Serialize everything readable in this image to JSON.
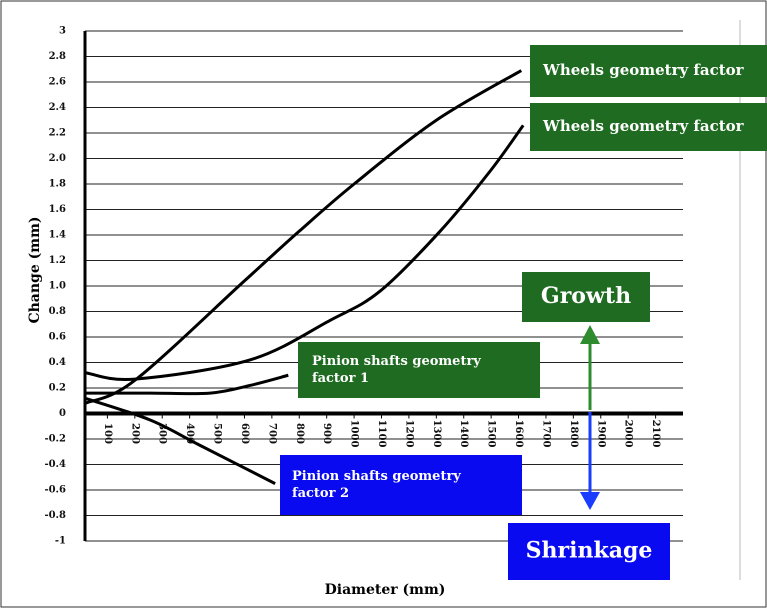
{
  "chart_data": {
    "type": "line",
    "ylabel": "Change (mm)",
    "xlabel": "Diameter (mm)",
    "xlim": [
      0,
      2200
    ],
    "xticks": [
      100,
      200,
      300,
      400,
      500,
      600,
      700,
      800,
      900,
      1000,
      1100,
      1200,
      1300,
      1400,
      1500,
      1600,
      1700,
      1800,
      1900,
      2000,
      2100
    ],
    "ylim": [
      -1,
      3
    ],
    "yticks": [
      3,
      2.8,
      2.6,
      2.4,
      2.2,
      {
        "value": 2,
        "label": "2.0"
      },
      1.8,
      1.6,
      1.4,
      1.2,
      {
        "value": 1,
        "label": "1.0"
      },
      0.8,
      0.6,
      0.4,
      0.2,
      0,
      -0.2,
      -0.4,
      -0.6,
      -0.8,
      -1
    ],
    "grid": true,
    "series": [
      {
        "color": "#000000",
        "x": [
          20,
          200,
          600,
          800,
          1000,
          1300,
          1610
        ],
        "values": [
          0.08,
          0.26,
          1.04,
          1.43,
          1.8,
          2.3,
          2.69
        ]
      },
      {
        "color": "#000000",
        "x": [
          20,
          200,
          620,
          912,
          1095,
          1314,
          1496,
          1617
        ],
        "values": [
          0.32,
          0.27,
          0.42,
          0.73,
          0.96,
          1.43,
          1.9,
          2.26
        ]
      },
      {
        "color": "#000000",
        "x": [
          20,
          255,
          475,
          620,
          760
        ],
        "values": [
          0.16,
          0.16,
          0.16,
          0.22,
          0.3
        ]
      },
      {
        "color": "#000000",
        "x": [
          18,
          255,
          438,
          712
        ],
        "values": [
          0.12,
          -0.05,
          -0.25,
          -0.55
        ]
      }
    ],
    "annotations": [
      {
        "lines": [
          "Wheels geometry factor"
        ],
        "color": "#1f6b21"
      },
      {
        "lines": [
          "Wheels geometry factor"
        ],
        "color": "#1f6b21"
      },
      {
        "lines": [
          "Growth"
        ],
        "color": "#1f6b21"
      },
      {
        "lines": [
          "Pinion shafts geometry",
          "factor 1"
        ],
        "color": "#1f6b21"
      },
      {
        "lines": [
          "Pinion shafts geometry",
          "factor 2"
        ],
        "color": "#0a0af0"
      },
      {
        "lines": [
          "Shrinkage"
        ],
        "color": "#0a0af0"
      }
    ]
  }
}
